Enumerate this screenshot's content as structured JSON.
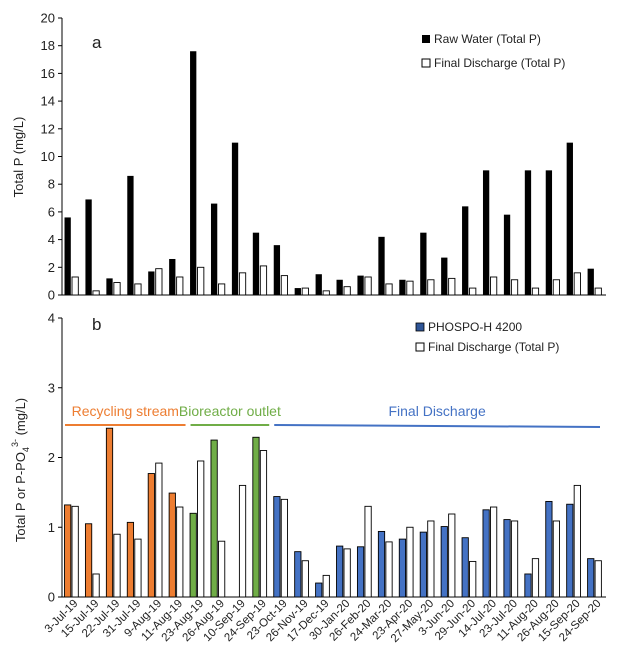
{
  "chart_data": [
    {
      "type": "bar",
      "panel_label": "a",
      "ylabel": "Total P (mg/L)",
      "ylim": [
        0,
        20
      ],
      "yticks": [
        0,
        2,
        4,
        6,
        8,
        10,
        12,
        14,
        16,
        18,
        20
      ],
      "legend_position": "top-right",
      "series": [
        {
          "name": "Raw Water (Total P)",
          "color": "#000000",
          "fill": "solid",
          "values": [
            5.6,
            6.9,
            1.2,
            8.6,
            1.7,
            2.6,
            17.6,
            6.6,
            11.0,
            4.5,
            3.6,
            0.5,
            1.5,
            1.1,
            1.4,
            4.2,
            1.1,
            4.5,
            2.7,
            6.4,
            9.0,
            5.8,
            9.0,
            9.0,
            11.0,
            1.9
          ]
        },
        {
          "name": "Final Discharge (Total P)",
          "color": "#000000",
          "fill": "hollow",
          "values": [
            1.3,
            0.3,
            0.9,
            0.8,
            1.9,
            1.3,
            2.0,
            0.8,
            1.6,
            2.1,
            1.4,
            0.5,
            0.3,
            0.6,
            1.3,
            0.8,
            1.0,
            1.1,
            1.2,
            0.5,
            1.3,
            1.1,
            0.5,
            1.1,
            1.6,
            0.5
          ]
        }
      ]
    },
    {
      "type": "bar",
      "panel_label": "b",
      "ylabel_main": "Total P or P-PO",
      "ylabel_sub": "4",
      "ylabel_sup": "3-",
      "ylabel_tail": " (mg/L)",
      "ylim": [
        0,
        4
      ],
      "yticks": [
        0,
        1,
        2,
        3,
        4
      ],
      "legend_position": "top-right",
      "categories": [
        "3-Jul-19",
        "15-Jul-19",
        "22-Jul-19",
        "31-Jul-19",
        "9-Aug-19",
        "11-Aug-19",
        "23-Aug-19",
        "26-Aug-19",
        "10-Sep-19",
        "24-Sep-19",
        "23-Oct-19",
        "26-Nov-19",
        "17-Dec-19",
        "30-Jan-20",
        "26-Feb-20",
        "24-Mar-20",
        "23-Apr-20",
        "27-May-20",
        "3-Jun-20",
        "29-Jun-20",
        "14-Jul-20",
        "23-Jul-20",
        "11-Aug-20",
        "26-Aug-20",
        "15-Sep-20",
        "24-Sep-20"
      ],
      "bar_colors": [
        "#ed7d31",
        "#ed7d31",
        "#ed7d31",
        "#ed7d31",
        "#ed7d31",
        "#ed7d31",
        "#70ad47",
        "#70ad47",
        "#70ad47",
        "#70ad47",
        "#4472c4",
        "#4472c4",
        "#4472c4",
        "#4472c4",
        "#4472c4",
        "#4472c4",
        "#4472c4",
        "#4472c4",
        "#4472c4",
        "#4472c4",
        "#4472c4",
        "#4472c4",
        "#4472c4",
        "#4472c4",
        "#4472c4",
        "#4472c4"
      ],
      "series": [
        {
          "name": "PHOSPO-H 4200",
          "color": "#2f5597",
          "fill": "solid",
          "values": [
            1.32,
            1.05,
            2.42,
            1.07,
            1.77,
            1.49,
            1.2,
            2.25,
            null,
            2.29,
            1.44,
            0.65,
            0.2,
            0.73,
            0.72,
            0.94,
            0.83,
            0.93,
            1.01,
            0.85,
            1.25,
            1.11,
            0.33,
            1.37,
            1.33,
            0.55
          ]
        },
        {
          "name": "Final Discharge (Total P)",
          "color": "#000000",
          "fill": "hollow",
          "values": [
            1.3,
            0.33,
            0.9,
            0.83,
            1.92,
            1.29,
            1.95,
            0.8,
            1.6,
            2.1,
            1.4,
            0.52,
            0.31,
            0.69,
            1.3,
            0.79,
            1.0,
            1.09,
            1.19,
            0.51,
            1.29,
            1.09,
            0.55,
            1.09,
            1.6,
            0.52
          ]
        }
      ],
      "annotations": [
        {
          "text": "Recycling stream",
          "color": "#ed7d31",
          "from_index": 0,
          "to_index": 5
        },
        {
          "text": "Bioreactor outlet",
          "color": "#70ad47",
          "from_index": 6,
          "to_index": 9
        },
        {
          "text": "Final Discharge",
          "color": "#4472c4",
          "from_index": 10,
          "to_index": 25
        }
      ]
    }
  ]
}
